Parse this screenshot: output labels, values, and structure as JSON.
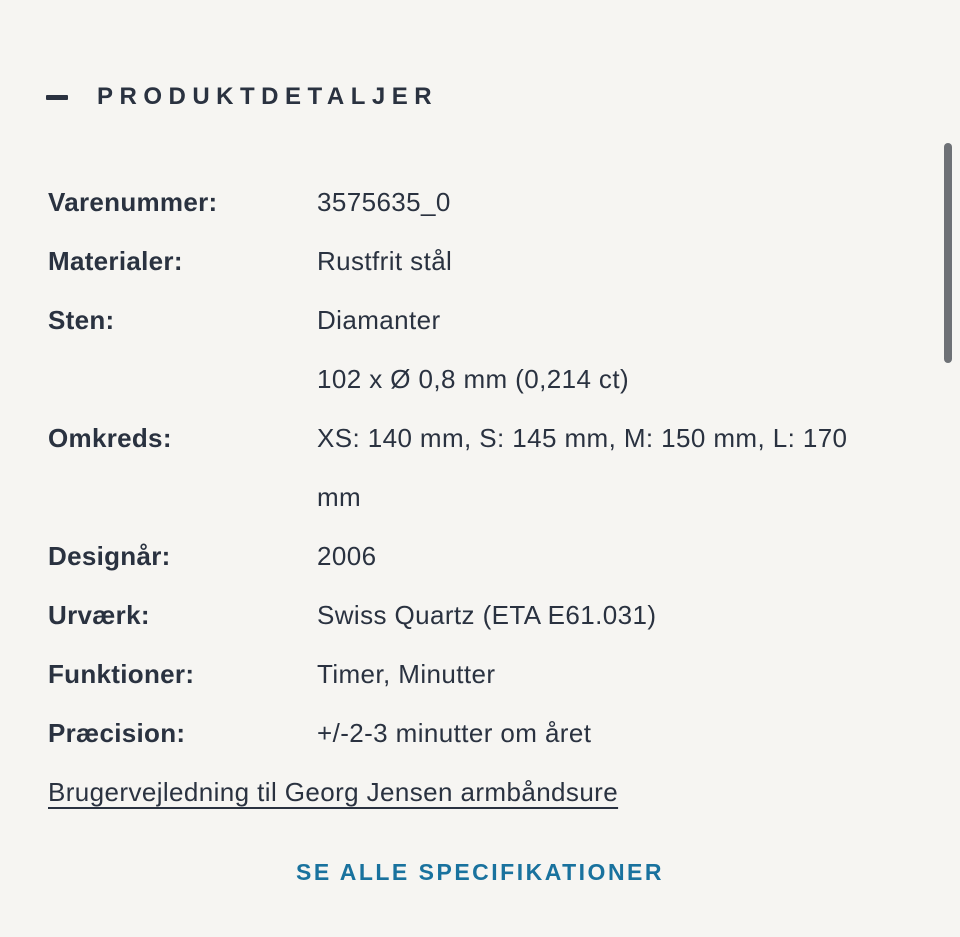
{
  "section": {
    "title": "PRODUKTDETALJER",
    "collapse_icon": "minus-icon",
    "state": "expanded"
  },
  "details": {
    "rows": [
      {
        "label": "Varenummer:",
        "lines": [
          "3575635_0"
        ]
      },
      {
        "label": "Materialer:",
        "lines": [
          "Rustfrit stål"
        ]
      },
      {
        "label": "Sten:",
        "lines": [
          "Diamanter",
          "102 x Ø 0,8 mm (0,214 ct)"
        ]
      },
      {
        "label": "Omkreds:",
        "lines": [
          "XS: 140 mm, S: 145 mm, M: 150 mm, L: 170",
          "mm"
        ]
      },
      {
        "label": "Designår:",
        "lines": [
          "2006"
        ]
      },
      {
        "label": "Urværk:",
        "lines": [
          "Swiss Quartz (ETA E61.031)"
        ]
      },
      {
        "label": "Funktioner:",
        "lines": [
          "Timer, Minutter"
        ]
      },
      {
        "label": "Præcision:",
        "lines": [
          "+/-2-3 minutter om året"
        ]
      }
    ]
  },
  "links": {
    "manual": "Brugervejledning til Georg Jensen armbåndsure",
    "all_specs": "SE ALLE SPECIFIKATIONER"
  },
  "colors": {
    "background": "#f6f5f2",
    "text": "#2a3240",
    "accent_blue": "#19729e",
    "scrollbar_thumb": "#6e7176"
  }
}
